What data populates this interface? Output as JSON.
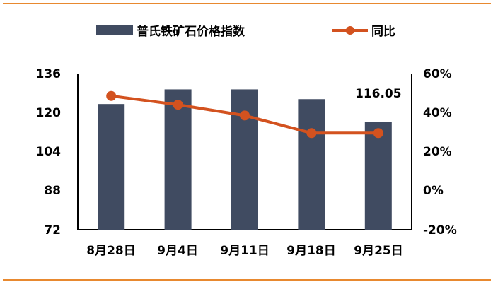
{
  "chart_data": {
    "type": "bar",
    "categories": [
      "8月28日",
      "9月4日",
      "9月11日",
      "9月18日",
      "9月25日"
    ],
    "series": [
      {
        "name": "普氏铁矿石价格指数",
        "type": "bar",
        "axis": "left",
        "values": [
          123.5,
          129.5,
          129.5,
          125.5,
          116.05
        ],
        "color": "#404b61"
      },
      {
        "name": "同比",
        "type": "line",
        "axis": "right",
        "values": [
          48.5,
          44.0,
          38.5,
          29.5,
          29.5
        ],
        "color": "#d3521f"
      }
    ],
    "y_left": {
      "ylim": [
        72,
        136
      ],
      "ticks": [
        "136",
        "120",
        "104",
        "88",
        "72"
      ]
    },
    "y_right": {
      "ylim": [
        -20,
        60
      ],
      "ticks": [
        "60%",
        "40%",
        "20%",
        "0%",
        "-20%"
      ]
    },
    "annotations": [
      {
        "category_index": 4,
        "series": 0,
        "text": "116.05"
      }
    ],
    "legend_position": "top",
    "grid": false
  }
}
